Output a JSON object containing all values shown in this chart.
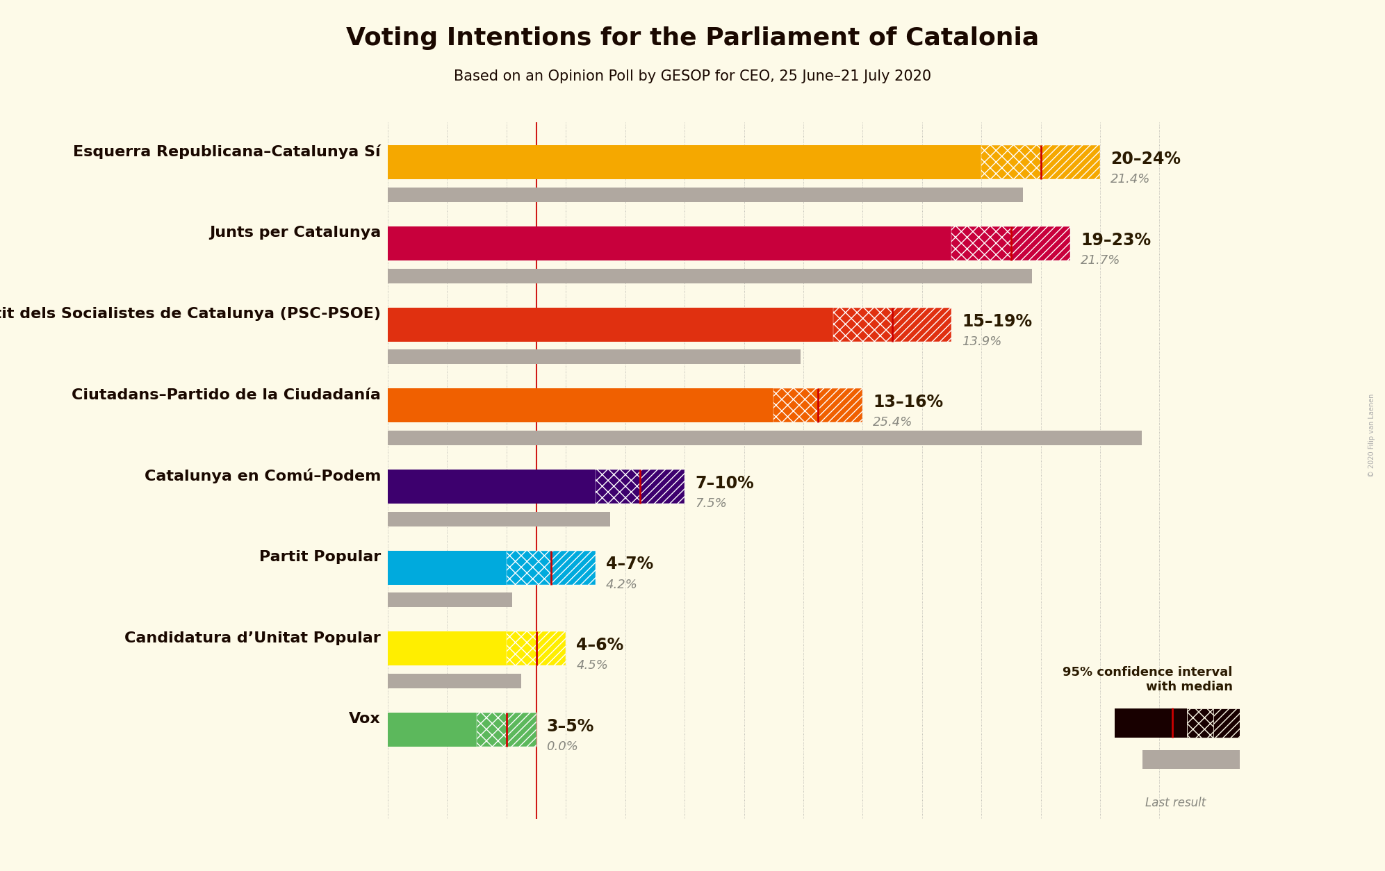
{
  "title": "Voting Intentions for the Parliament of Catalonia",
  "subtitle": "Based on an Opinion Poll by GESOP for CEO, 25 June–21 July 2020",
  "background_color": "#FDFAE8",
  "parties": [
    {
      "name": "Esquerra Republicana–Catalunya Sí",
      "ci_low": 20,
      "ci_high": 24,
      "median": 22,
      "last_result": 21.4,
      "color": "#F5A800",
      "label": "20–24%",
      "last_label": "21.4%"
    },
    {
      "name": "Junts per Catalunya",
      "ci_low": 19,
      "ci_high": 23,
      "median": 21,
      "last_result": 21.7,
      "color": "#C8003C",
      "label": "19–23%",
      "last_label": "21.7%"
    },
    {
      "name": "Partit dels Socialistes de Catalunya (PSC-PSOE)",
      "ci_low": 15,
      "ci_high": 19,
      "median": 17,
      "last_result": 13.9,
      "color": "#E03010",
      "label": "15–19%",
      "last_label": "13.9%"
    },
    {
      "name": "Ciutadans–Partido de la Ciudadanía",
      "ci_low": 13,
      "ci_high": 16,
      "median": 14.5,
      "last_result": 25.4,
      "color": "#F06000",
      "label": "13–16%",
      "last_label": "25.4%"
    },
    {
      "name": "Catalunya en Comú–Podem",
      "ci_low": 7,
      "ci_high": 10,
      "median": 8.5,
      "last_result": 7.5,
      "color": "#3D006E",
      "label": "7–10%",
      "last_label": "7.5%"
    },
    {
      "name": "Partit Popular",
      "ci_low": 4,
      "ci_high": 7,
      "median": 5.5,
      "last_result": 4.2,
      "color": "#00AADD",
      "label": "4–7%",
      "last_label": "4.2%"
    },
    {
      "name": "Candidatura d’Unitat Popular",
      "ci_low": 4,
      "ci_high": 6,
      "median": 5,
      "last_result": 4.5,
      "color": "#FFEE00",
      "label": "4–6%",
      "last_label": "4.5%"
    },
    {
      "name": "Vox",
      "ci_low": 3,
      "ci_high": 5,
      "median": 4,
      "last_result": 0.0,
      "color": "#5CB85C",
      "label": "3–5%",
      "last_label": "0.0%"
    }
  ],
  "x_max": 28,
  "median_line_color": "#CC0000",
  "last_result_color": "#B0A8A0",
  "label_fontsize": 17,
  "title_fontsize": 26,
  "subtitle_fontsize": 15,
  "party_fontsize": 16
}
